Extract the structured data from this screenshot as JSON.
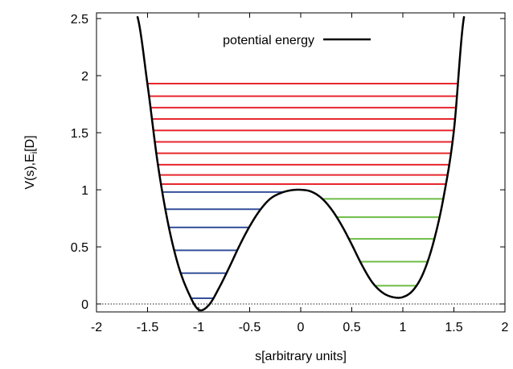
{
  "chart_data": {
    "type": "line",
    "title": "",
    "xlabel": "s[arbitrary units]",
    "ylabel_main": "V(s),E",
    "ylabel_sub": "i",
    "ylabel_tail": "[D]",
    "xlim": [
      -2,
      2
    ],
    "ylim": [
      -0.07,
      2.55
    ],
    "x_ticks": [
      -2,
      -1.5,
      -1,
      -0.5,
      0,
      0.5,
      1,
      1.5,
      2
    ],
    "x_tick_labels": [
      "-2",
      "-1.5",
      "-1",
      "-0.5",
      "0",
      "0.5",
      "1",
      "1.5",
      "2"
    ],
    "y_ticks": [
      0,
      0.5,
      1,
      1.5,
      2,
      2.5
    ],
    "y_tick_labels": [
      "0",
      "0.5",
      "1",
      "1.5",
      "2",
      "2.5"
    ],
    "legend": {
      "position": "top-center",
      "entries": [
        "potential energy"
      ]
    },
    "grid": false,
    "zero_line": {
      "y": 0,
      "style": "dotted"
    },
    "potential": {
      "name": "potential energy",
      "color": "#000000",
      "x_samples": [
        -1.6,
        -1.5,
        -1.4,
        -1.3,
        -1.2,
        -1.1,
        -1.0,
        -0.9,
        -0.8,
        -0.7,
        -0.6,
        -0.5,
        -0.4,
        -0.3,
        -0.2,
        -0.1,
        0.0,
        0.1,
        0.2,
        0.3,
        0.4,
        0.5,
        0.6,
        0.7,
        0.8,
        0.9,
        1.0,
        1.1,
        1.2,
        1.3,
        1.4,
        1.5,
        1.6
      ],
      "y_samples": [
        2.52,
        1.92,
        1.23,
        0.71,
        0.34,
        0.1,
        -0.05,
        -0.01,
        0.14,
        0.32,
        0.51,
        0.68,
        0.82,
        0.92,
        0.97,
        0.995,
        1.0,
        0.985,
        0.93,
        0.83,
        0.69,
        0.52,
        0.34,
        0.19,
        0.1,
        0.06,
        0.06,
        0.12,
        0.27,
        0.54,
        0.94,
        1.52,
        2.52
      ]
    },
    "energy_levels": {
      "red": {
        "color": "#e8262e",
        "values": [
          1.05,
          1.13,
          1.22,
          1.32,
          1.42,
          1.52,
          1.62,
          1.72,
          1.82,
          1.93
        ]
      },
      "blue": {
        "color": "#34509a",
        "values": [
          0.05,
          0.27,
          0.47,
          0.67,
          0.83,
          0.98
        ]
      },
      "green": {
        "color": "#6cbd45",
        "values": [
          0.16,
          0.37,
          0.57,
          0.76,
          0.92
        ]
      }
    }
  }
}
